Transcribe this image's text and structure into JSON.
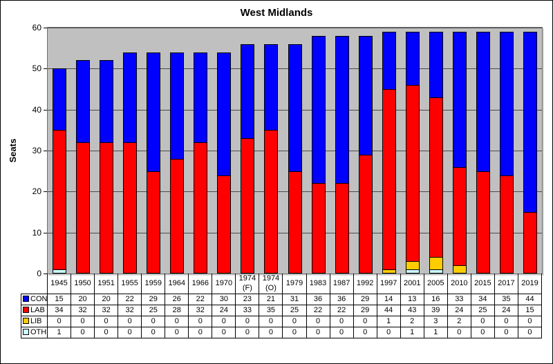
{
  "chart_data": {
    "type": "bar",
    "stacked": true,
    "title": "West Midlands",
    "xlabel": "",
    "ylabel": "Seats",
    "ylim": [
      0,
      60
    ],
    "ytick_step": 10,
    "grid": true,
    "plot_bg": "#c0c0c0",
    "legend_position": "table-left",
    "categories": [
      "1945",
      "1950",
      "1951",
      "1955",
      "1959",
      "1964",
      "1966",
      "1970",
      "1974 (F)",
      "1974 (O)",
      "1979",
      "1983",
      "1987",
      "1992",
      "1997",
      "2001",
      "2005",
      "2010",
      "2015",
      "2017",
      "2019"
    ],
    "series": [
      {
        "name": "CON",
        "color": "#0000ff",
        "values": [
          15,
          20,
          20,
          22,
          29,
          26,
          22,
          30,
          23,
          21,
          31,
          36,
          36,
          29,
          14,
          13,
          16,
          33,
          34,
          35,
          44
        ]
      },
      {
        "name": "LAB",
        "color": "#ff0000",
        "values": [
          34,
          32,
          32,
          32,
          25,
          28,
          32,
          24,
          33,
          35,
          25,
          22,
          22,
          29,
          44,
          43,
          39,
          24,
          25,
          24,
          15
        ]
      },
      {
        "name": "LIB",
        "color": "#ffcc00",
        "values": [
          0,
          0,
          0,
          0,
          0,
          0,
          0,
          0,
          0,
          0,
          0,
          0,
          0,
          0,
          1,
          2,
          3,
          2,
          0,
          0,
          0
        ]
      },
      {
        "name": "OTH",
        "color": "#ccffff",
        "values": [
          1,
          0,
          0,
          0,
          0,
          0,
          0,
          0,
          0,
          0,
          0,
          0,
          0,
          0,
          0,
          1,
          1,
          0,
          0,
          0,
          0
        ]
      }
    ],
    "stack_order_bottom_to_top": [
      "OTH",
      "LIB",
      "LAB",
      "CON"
    ]
  }
}
